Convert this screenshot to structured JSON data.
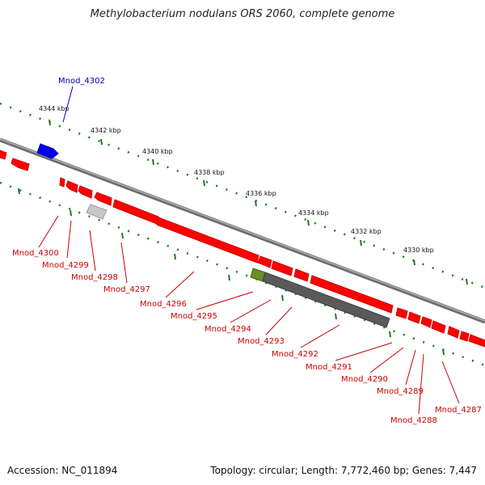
{
  "title": "Methylobacterium nodulans ORS 2060, complete genome",
  "footer": {
    "accession": "Accession: NC_011894",
    "topology": "Topology: circular; Length: 7,772,460 bp; Genes: 7,447"
  },
  "colors": {
    "gene_minus": "#ff0000",
    "gene_plus": "#0000ee",
    "gene_grey": "#bdbdbd",
    "gene_green": "#6b8e23",
    "gene_dark": "#5a5a5a",
    "backbone": "#888888",
    "tick": "#1e7a1e",
    "label_red": "#cc0000",
    "label_blue": "#0000aa"
  },
  "kbp_ticks": [
    "4344 kbp",
    "4342 kbp",
    "4340 kbp",
    "4338 kbp",
    "4336 kbp",
    "4334 kbp",
    "4332 kbp",
    "4330 kbp"
  ],
  "genes": [
    {
      "label": "Mnod_4302",
      "color": "blue"
    },
    {
      "label": "Mnod_4300",
      "color": "red"
    },
    {
      "label": "Mnod_4299",
      "color": "red"
    },
    {
      "label": "Mnod_4298",
      "color": "red"
    },
    {
      "label": "Mnod_4297",
      "color": "red"
    },
    {
      "label": "Mnod_4296",
      "color": "red"
    },
    {
      "label": "Mnod_4295",
      "color": "red"
    },
    {
      "label": "Mnod_4294",
      "color": "red"
    },
    {
      "label": "Mnod_4293",
      "color": "red"
    },
    {
      "label": "Mnod_4292",
      "color": "red"
    },
    {
      "label": "Mnod_4291",
      "color": "red"
    },
    {
      "label": "Mnod_4290",
      "color": "red"
    },
    {
      "label": "Mnod_4289",
      "color": "red"
    },
    {
      "label": "Mnod_4288",
      "color": "red"
    },
    {
      "label": "Mnod_4287",
      "color": "red"
    }
  ]
}
